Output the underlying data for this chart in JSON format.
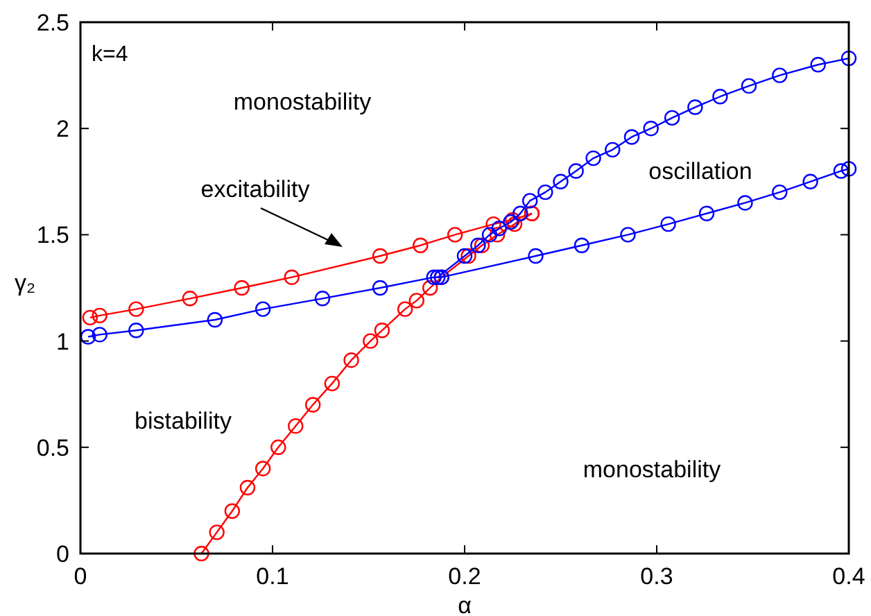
{
  "chart_data": {
    "type": "line",
    "xlabel": "α",
    "ylabel": "γ₂",
    "xlim": [
      0,
      0.4
    ],
    "ylim": [
      0,
      2.5
    ],
    "xticks": [
      0,
      0.1,
      0.2,
      0.3,
      0.4
    ],
    "yticks": [
      0,
      0.5,
      1,
      1.5,
      2,
      2.5
    ],
    "grid": false,
    "marker": "circle",
    "line_style": "solid",
    "series": [
      {
        "color": "#ff0000",
        "x": [
          0.005,
          0.01,
          0.029,
          0.057,
          0.084,
          0.11,
          0.156,
          0.177,
          0.195,
          0.215,
          0.225,
          0.235
        ],
        "values": [
          1.11,
          1.12,
          1.15,
          1.2,
          1.25,
          1.3,
          1.4,
          1.45,
          1.5,
          1.55,
          1.57,
          1.6
        ]
      },
      {
        "color": "#ff0000",
        "x": [
          0.063,
          0.071,
          0.079,
          0.087,
          0.095,
          0.103,
          0.112,
          0.121,
          0.131,
          0.141,
          0.151,
          0.157,
          0.169,
          0.175,
          0.182,
          0.188,
          0.202,
          0.209,
          0.217,
          0.226,
          0.235
        ],
        "values": [
          0,
          0.1,
          0.2,
          0.31,
          0.4,
          0.5,
          0.6,
          0.7,
          0.8,
          0.91,
          1,
          1.05,
          1.15,
          1.19,
          1.25,
          1.3,
          1.4,
          1.45,
          1.5,
          1.55,
          1.6
        ]
      },
      {
        "color": "#0000ff",
        "x": [
          0.004,
          0.01,
          0.029,
          0.07,
          0.095,
          0.126,
          0.156,
          0.184,
          0.188,
          0.237,
          0.261,
          0.285,
          0.306,
          0.326,
          0.346,
          0.364,
          0.38,
          0.396,
          0.4
        ],
        "values": [
          1.02,
          1.03,
          1.05,
          1.1,
          1.15,
          1.2,
          1.25,
          1.3,
          1.3,
          1.4,
          1.45,
          1.5,
          1.55,
          1.6,
          1.65,
          1.7,
          1.75,
          1.8,
          1.81
        ]
      },
      {
        "color": "#0000ff",
        "x": [
          0.186,
          0.2,
          0.207,
          0.213,
          0.218,
          0.224,
          0.229,
          0.234,
          0.242,
          0.25,
          0.258,
          0.267,
          0.277,
          0.287,
          0.297,
          0.308,
          0.32,
          0.333,
          0.348,
          0.364,
          0.384,
          0.4
        ],
        "values": [
          1.3,
          1.4,
          1.45,
          1.5,
          1.53,
          1.56,
          1.6,
          1.66,
          1.7,
          1.75,
          1.8,
          1.86,
          1.9,
          1.96,
          2,
          2.05,
          2.1,
          2.15,
          2.2,
          2.25,
          2.3,
          2.33
        ]
      }
    ],
    "annotations": [
      "k=4",
      "monostability",
      "excitability",
      "oscillation",
      "bistability",
      "monostability"
    ]
  }
}
